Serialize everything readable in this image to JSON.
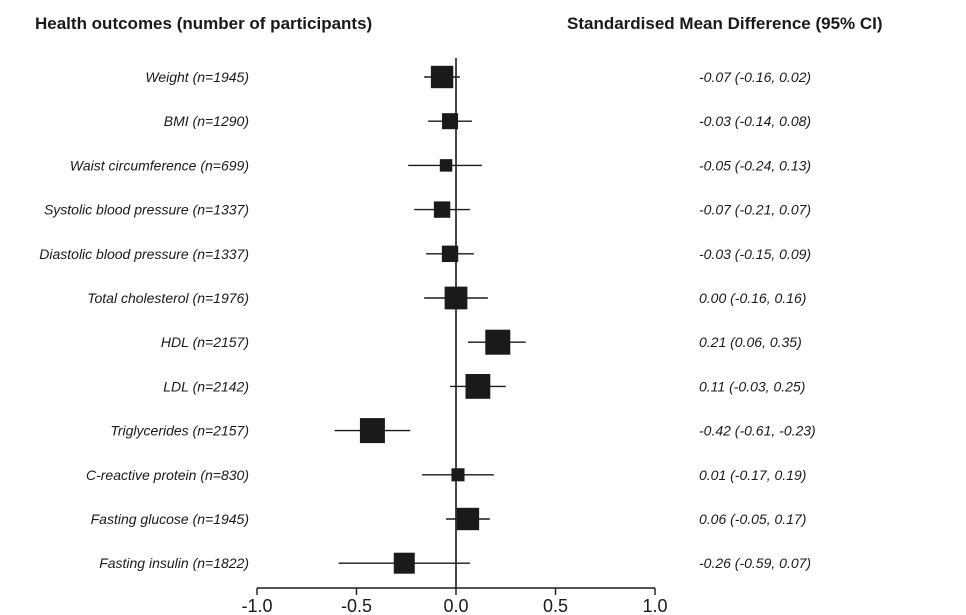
{
  "chart_data": {
    "type": "forest",
    "headers": {
      "left": "Health outcomes (number of participants)",
      "right": "Standardised Mean Difference (95% CI)"
    },
    "xlim": [
      -1.0,
      1.0
    ],
    "x_ticks": [
      "-1.0",
      "-0.5",
      "0.0",
      "0.5",
      "1.0"
    ],
    "x_tick_values": [
      -1.0,
      -0.5,
      0.0,
      0.5,
      1.0
    ],
    "reference_line": 0,
    "rows": [
      {
        "label": "Weight (n=1945)",
        "n": 1945,
        "smd": -0.07,
        "lower": -0.16,
        "upper": 0.02,
        "ci_text": "-0.07 (-0.16, 0.02)"
      },
      {
        "label": "BMI (n=1290)",
        "n": 1290,
        "smd": -0.03,
        "lower": -0.14,
        "upper": 0.08,
        "ci_text": "-0.03 (-0.14, 0.08)"
      },
      {
        "label": "Waist circumference (n=699)",
        "n": 699,
        "smd": -0.05,
        "lower": -0.24,
        "upper": 0.13,
        "ci_text": "-0.05 (-0.24, 0.13)"
      },
      {
        "label": "Systolic blood pressure (n=1337)",
        "n": 1337,
        "smd": -0.07,
        "lower": -0.21,
        "upper": 0.07,
        "ci_text": "-0.07 (-0.21, 0.07)"
      },
      {
        "label": "Diastolic blood pressure (n=1337)",
        "n": 1337,
        "smd": -0.03,
        "lower": -0.15,
        "upper": 0.09,
        "ci_text": "-0.03 (-0.15, 0.09)"
      },
      {
        "label": "Total cholesterol (n=1976)",
        "n": 1976,
        "smd": 0.0,
        "lower": -0.16,
        "upper": 0.16,
        "ci_text": "0.00 (-0.16, 0.16)"
      },
      {
        "label": "HDL (n=2157)",
        "n": 2157,
        "smd": 0.21,
        "lower": 0.06,
        "upper": 0.35,
        "ci_text": "0.21 (0.06, 0.35)"
      },
      {
        "label": "LDL (n=2142)",
        "n": 2142,
        "smd": 0.11,
        "lower": -0.03,
        "upper": 0.25,
        "ci_text": "0.11 (-0.03, 0.25)"
      },
      {
        "label": "Triglycerides (n=2157)",
        "n": 2157,
        "smd": -0.42,
        "lower": -0.61,
        "upper": -0.23,
        "ci_text": "-0.42 (-0.61, -0.23)"
      },
      {
        "label": "C-reactive protein (n=830)",
        "n": 830,
        "smd": 0.01,
        "lower": -0.17,
        "upper": 0.19,
        "ci_text": "0.01 (-0.17, 0.19)"
      },
      {
        "label": "Fasting glucose (n=1945)",
        "n": 1945,
        "smd": 0.06,
        "lower": -0.05,
        "upper": 0.17,
        "ci_text": "0.06 (-0.05, 0.17)"
      },
      {
        "label": "Fasting insulin (n=1822)",
        "n": 1822,
        "smd": -0.26,
        "lower": -0.59,
        "upper": 0.07,
        "ci_text": "-0.26 (-0.59, 0.07)"
      }
    ]
  }
}
